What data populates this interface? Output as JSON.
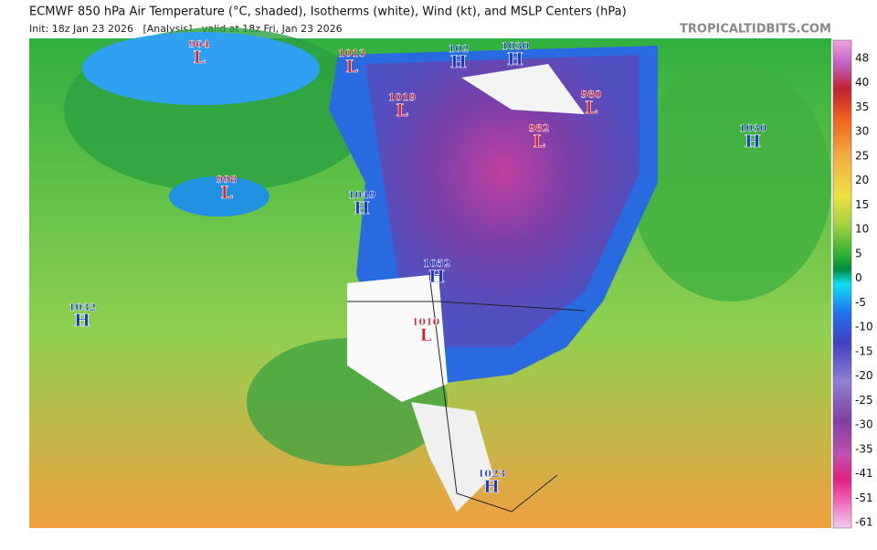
{
  "header": {
    "title": "ECMWF 850 hPa Air Temperature (°C, shaded), Isotherms (white), Wind (kt), and MSLP Centers (hPa)",
    "subtitle": "Init: 18z Jan 23 2026   [Analysis]   valid at 18z Fri, Jan 23 2026",
    "site": "TROPICALTIDBITS.COM"
  },
  "colorbar": {
    "labels": [
      "48",
      "40",
      "35",
      "30",
      "25",
      "20",
      "15",
      "10",
      "5",
      "0",
      "-5",
      "-10",
      "-15",
      "-20",
      "-25",
      "-30",
      "-35",
      "-41",
      "-51",
      "-61"
    ]
  },
  "pressure_centers": [
    {
      "kind": "L",
      "value": "964"
    },
    {
      "kind": "L",
      "value": "1013"
    },
    {
      "kind": "H",
      "value": "102"
    },
    {
      "kind": "H",
      "value": "1030"
    },
    {
      "kind": "L",
      "value": "1019"
    },
    {
      "kind": "L",
      "value": "980"
    },
    {
      "kind": "L",
      "value": "982"
    },
    {
      "kind": "H",
      "value": "1030"
    },
    {
      "kind": "L",
      "value": "998"
    },
    {
      "kind": "H",
      "value": "1049"
    },
    {
      "kind": "H",
      "value": "1052"
    },
    {
      "kind": "H",
      "value": "1032"
    },
    {
      "kind": "L",
      "value": "1010"
    },
    {
      "kind": "H",
      "value": "1023"
    }
  ]
}
